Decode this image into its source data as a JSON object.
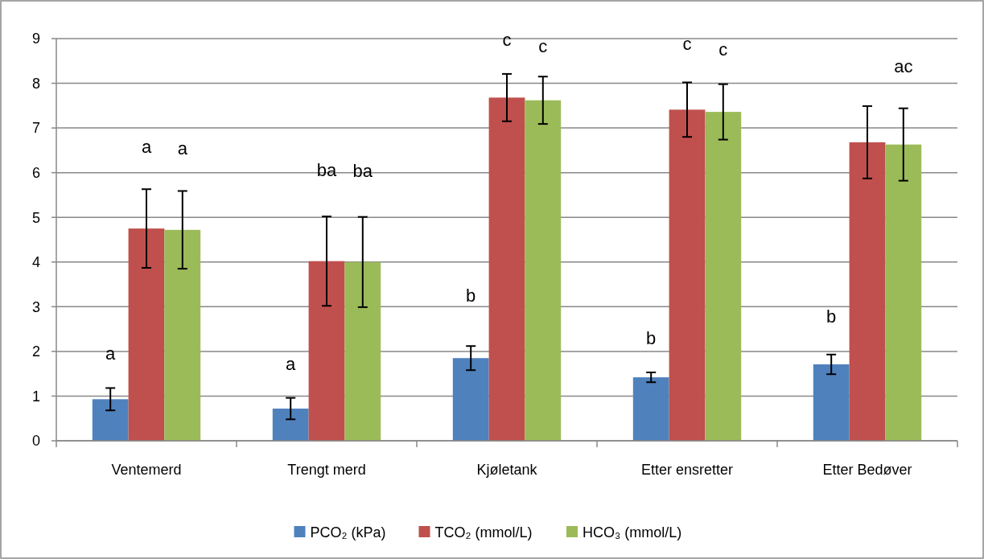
{
  "chart_data": {
    "type": "bar",
    "categories": [
      "Ventemerd",
      "Trengt merd",
      "Kjøletank",
      "Etter ensretter",
      "Etter Bedøver"
    ],
    "series": [
      {
        "name": "PCO₂ (kPa)",
        "color": "#4f81bd",
        "values": [
          0.93,
          0.72,
          1.85,
          1.42,
          1.71
        ],
        "errors": [
          0.25,
          0.24,
          0.27,
          0.11,
          0.22
        ]
      },
      {
        "name": "TCO₂ (mmol/L)",
        "color": "#c0504d",
        "values": [
          4.75,
          4.02,
          7.68,
          7.41,
          6.68
        ],
        "errors": [
          0.88,
          1.0,
          0.53,
          0.61,
          0.81
        ]
      },
      {
        "name": "HCO₃ (mmol/L)",
        "color": "#9bbb59",
        "values": [
          4.72,
          4.0,
          7.62,
          7.36,
          6.63
        ],
        "errors": [
          0.87,
          1.01,
          0.53,
          0.62,
          0.81
        ]
      }
    ],
    "ylim": [
      0,
      9
    ],
    "yticks": [
      0,
      1,
      2,
      3,
      4,
      5,
      6,
      7,
      8,
      9
    ],
    "grid": "y",
    "legend": "bottom",
    "annotations": [
      "a",
      "a",
      "a",
      "a",
      "ba",
      "ba",
      "b",
      "c",
      "c",
      "b",
      "c",
      "c",
      "b",
      "ac"
    ]
  }
}
